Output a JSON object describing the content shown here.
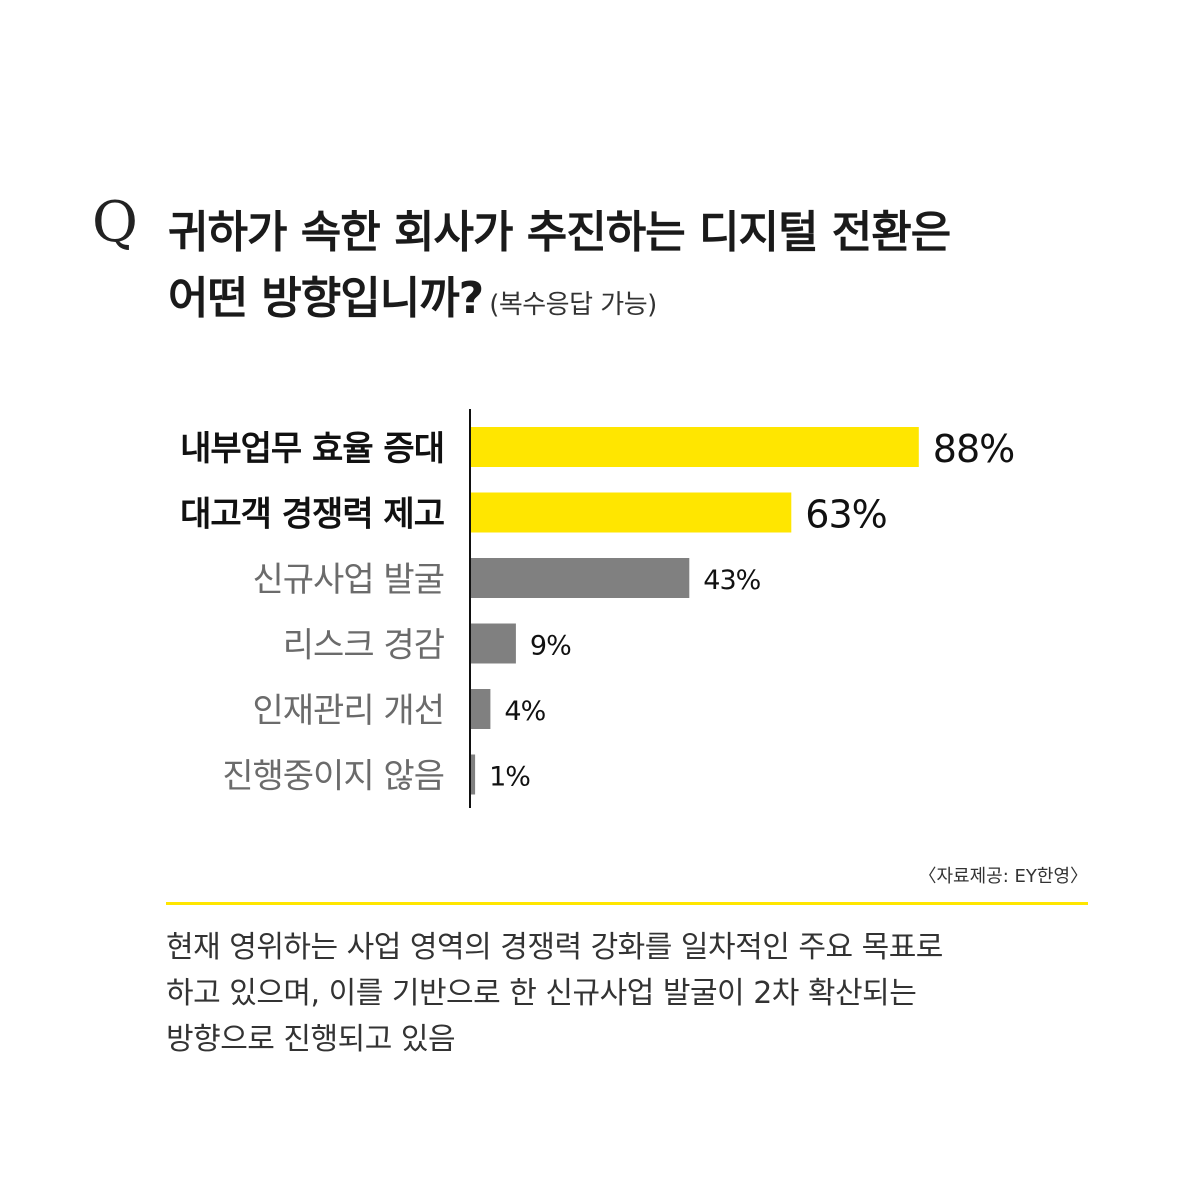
{
  "question": {
    "mark": "Q",
    "line1": "귀하가 속한 회사가 추진하는 디지털 전환은",
    "line2": "어떤 방향입니까?",
    "note": "(복수응답 가능)"
  },
  "chart_data": {
    "type": "bar",
    "orientation": "horizontal",
    "categories": [
      "내부업무 효율 증대",
      "대고객 경쟁력 제고",
      "신규사업 발굴",
      "리스크 경감",
      "인재관리 개선",
      "진행중이지 않음"
    ],
    "values": [
      88,
      63,
      43,
      9,
      4,
      1
    ],
    "value_labels": [
      "88%",
      "63%",
      "43%",
      "9%",
      "4%",
      "1%"
    ],
    "highlight": [
      true,
      true,
      false,
      false,
      false,
      false
    ],
    "colors": {
      "highlight": "#ffe600",
      "normal": "#808080"
    },
    "xlim": [
      0,
      100
    ]
  },
  "source": "〈자료제공: EY한영〉",
  "summary": [
    "현재 영위하는 사업 영역의 경쟁력 강화를 일차적인 주요 목표로",
    "하고 있으며, 이를 기반으로 한 신규사업 발굴이 2차 확산되는",
    "방향으로 진행되고 있음"
  ]
}
